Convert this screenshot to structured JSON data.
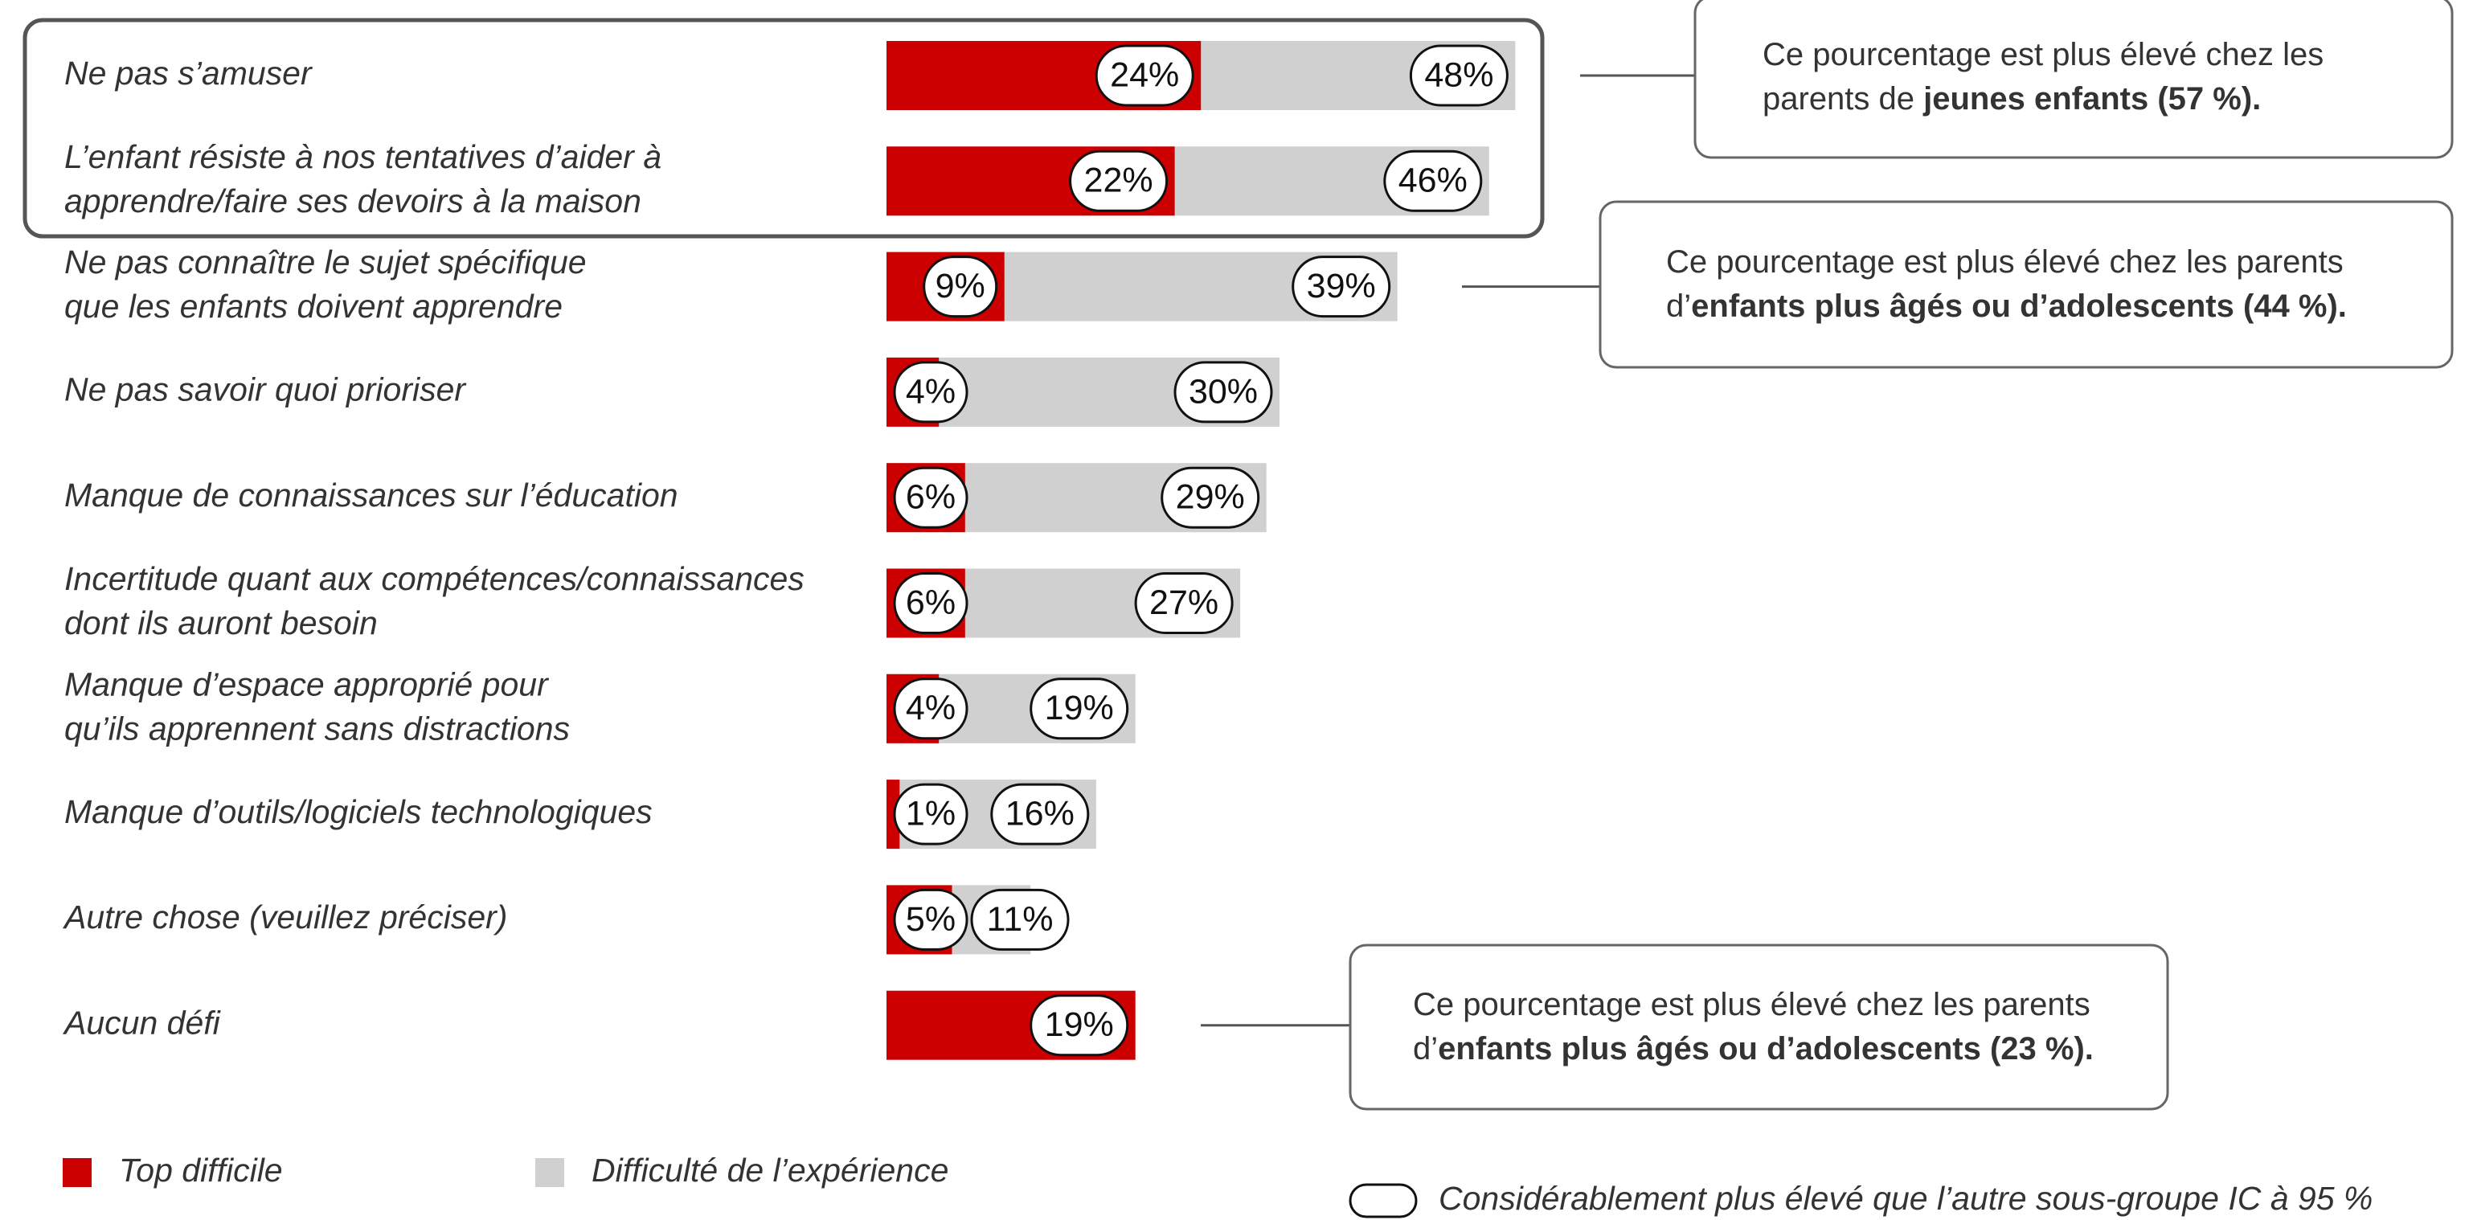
{
  "chart_data": {
    "type": "bar",
    "orientation": "horizontal",
    "categories": [
      "Ne pas s’amuser",
      "L’enfant résiste à nos tentatives d’aider à\napprendre/faire ses devoirs à la maison",
      "Ne pas connaître le sujet spécifique\nque les enfants doivent apprendre",
      "Ne pas savoir quoi prioriser",
      "Manque de connaissances sur l’éducation",
      "Incertitude quant aux compétences/connaissances\ndont ils auront besoin",
      "Manque d’espace approprié pour\nqu’ils apprennent sans distractions",
      "Manque d’outils/logiciels technologiques",
      "Autre chose (veuillez préciser)",
      "Aucun défi"
    ],
    "series": [
      {
        "name": "Difficulté de l’expérience",
        "color": "#d0d0d0",
        "values": [
          48,
          46,
          39,
          30,
          29,
          27,
          19,
          16,
          11,
          null
        ],
        "value_labels": [
          "48%",
          "46%",
          "39%",
          "30%",
          "29%",
          "27%",
          "19%",
          "16%",
          "11%",
          null
        ]
      },
      {
        "name": "Top difficile",
        "color": "#cc0000",
        "values": [
          24,
          22,
          9,
          4,
          6,
          6,
          4,
          1,
          5,
          19
        ],
        "value_labels": [
          "24%",
          "22%",
          "9%",
          "4%",
          "6%",
          "6%",
          "4%",
          "1%",
          "5%",
          "19%"
        ]
      }
    ],
    "xlim": [
      0,
      50
    ],
    "annotations": [
      {
        "category": 0,
        "text": "Ce pourcentage est plus élevé chez les parents de ",
        "bold": "jeunes enfants (57 %)."
      },
      {
        "category": 2,
        "text": "Ce pourcentage est plus élevé chez les parents d’",
        "bold": "enfants plus âgés ou d’adolescents (44 %)."
      },
      {
        "category": 9,
        "text": "Ce pourcentage est plus élevé chez les parents d’",
        "bold": "enfants plus âgés ou d’adolescents (23 %)."
      }
    ],
    "significance_note": "Considérablement plus élevé que l’autre sous-groupe IC à 95 %"
  }
}
